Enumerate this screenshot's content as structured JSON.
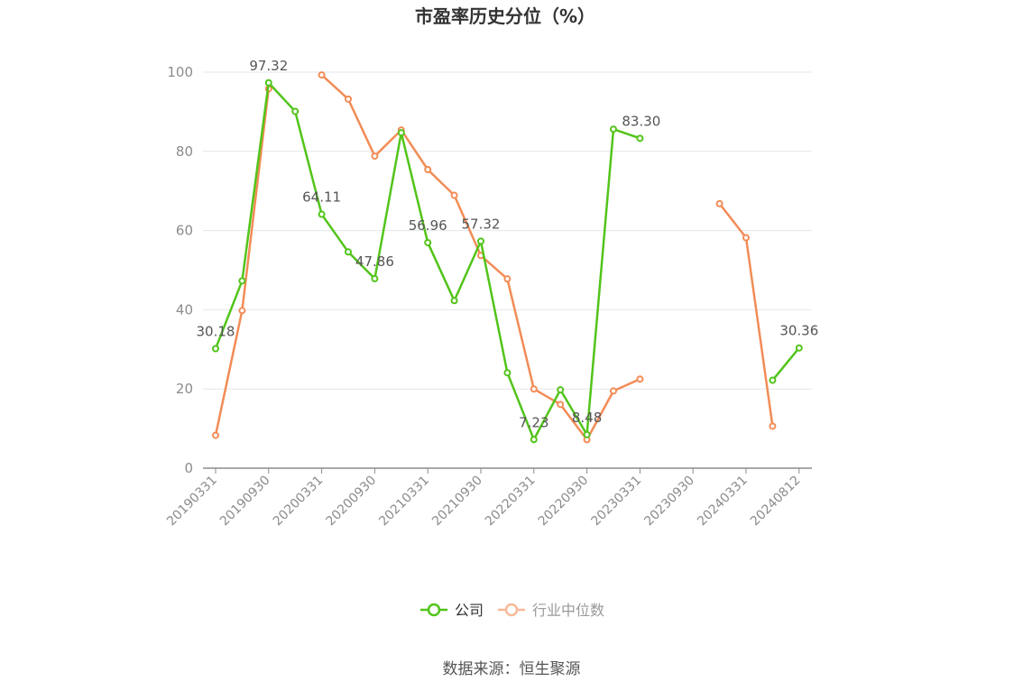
{
  "chart_data": {
    "type": "line",
    "title": "市盈率历史分位（%）",
    "source": "数据来源：恒生聚源",
    "ylim": [
      0,
      100
    ],
    "yticks": [
      "0",
      "20",
      "40",
      "60",
      "80",
      "100"
    ],
    "categories": [
      "20190331",
      "20190630",
      "20190930",
      "20191231",
      "20200331",
      "20200630",
      "20200930",
      "20201231",
      "20210331",
      "20210630",
      "20210930",
      "20211231",
      "20220331",
      "20220630",
      "20220930",
      "20221231",
      "20230331",
      "20230630",
      "20230930",
      "20231231",
      "20240331",
      "20240630",
      "20240812"
    ],
    "x_tick_labels": [
      "20190331",
      "20190930",
      "20200331",
      "20200930",
      "20210331",
      "20210930",
      "20220331",
      "20220930",
      "20230331",
      "20230930",
      "20240331",
      "20240812"
    ],
    "grid": true,
    "legend_position": "bottom",
    "series": [
      {
        "name": "公司",
        "color": "#52c41a",
        "values": [
          30.18,
          47.3,
          97.32,
          90.1,
          64.11,
          54.6,
          47.86,
          84.7,
          56.96,
          42.3,
          57.32,
          24.1,
          7.23,
          19.8,
          8.48,
          85.6,
          83.3,
          null,
          null,
          null,
          null,
          22.2,
          30.36
        ],
        "labels": {
          "0": "30.18",
          "2": "97.32",
          "4": "64.11",
          "6": "47.86",
          "8": "56.96",
          "10": "57.32",
          "12": "7.23",
          "14": "8.48",
          "16": "83.30",
          "22": "30.36"
        }
      },
      {
        "name": "行业中位数",
        "color": "#f28c56",
        "values": [
          8.3,
          39.8,
          95.8,
          null,
          99.3,
          93.2,
          78.8,
          85.4,
          75.4,
          68.9,
          53.7,
          47.8,
          20.0,
          16.1,
          7.2,
          19.5,
          22.5,
          null,
          null,
          66.8,
          58.2,
          10.6,
          null
        ],
        "labels": {}
      }
    ]
  }
}
